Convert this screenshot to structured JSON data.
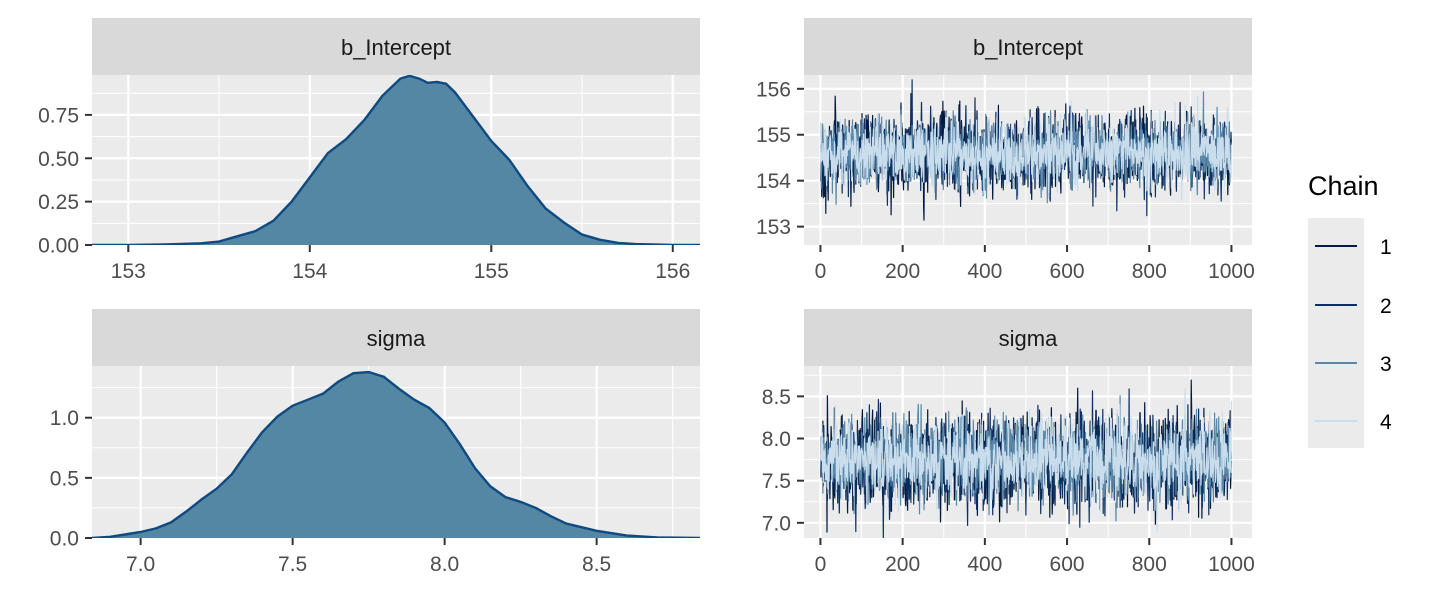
{
  "colors": {
    "panel_bg": "#EBEBEB",
    "strip_bg": "#D9D9D9",
    "grid": "#FFFFFF",
    "density_fill": "#5487A4",
    "density_line": "#0F4A80",
    "chain_1": "#03193F",
    "chain_2": "#0E3161",
    "chain_3": "#5A89AA",
    "chain_4": "#C9DDEC"
  },
  "legend": {
    "title": "Chain",
    "items": [
      {
        "label": "1",
        "color": "#03193F"
      },
      {
        "label": "2",
        "color": "#0E3161"
      },
      {
        "label": "3",
        "color": "#5A89AA"
      },
      {
        "label": "4",
        "color": "#C9DDEC"
      }
    ]
  },
  "chart_data": [
    {
      "type": "area",
      "kind": "density",
      "title": "b_Intercept",
      "xlim": [
        152.8,
        156.15
      ],
      "ylim": [
        0,
        0.98
      ],
      "xticks": [
        153,
        154,
        155,
        156
      ],
      "xtick_labels": [
        "153",
        "154",
        "155",
        "156"
      ],
      "yticks": [
        0,
        0.25,
        0.5,
        0.75
      ],
      "ytick_labels": [
        "0.00",
        "0.25",
        "0.50",
        "0.75"
      ],
      "x": [
        152.8,
        153.0,
        153.2,
        153.4,
        153.5,
        153.6,
        153.7,
        153.8,
        153.9,
        154.0,
        154.1,
        154.2,
        154.3,
        154.4,
        154.5,
        154.55,
        154.6,
        154.65,
        154.7,
        154.75,
        154.8,
        154.9,
        155.0,
        155.1,
        155.2,
        155.3,
        155.4,
        155.5,
        155.6,
        155.7,
        155.8,
        156.0,
        156.15
      ],
      "y": [
        0.0,
        0.0,
        0.003,
        0.01,
        0.02,
        0.05,
        0.08,
        0.14,
        0.25,
        0.39,
        0.53,
        0.61,
        0.72,
        0.86,
        0.96,
        0.975,
        0.96,
        0.935,
        0.94,
        0.93,
        0.88,
        0.74,
        0.6,
        0.49,
        0.34,
        0.21,
        0.13,
        0.06,
        0.03,
        0.012,
        0.005,
        0.0,
        0.0
      ]
    },
    {
      "type": "line",
      "kind": "trace",
      "title": "b_Intercept",
      "xlim": [
        -40,
        1050
      ],
      "ylim": [
        152.6,
        156.3
      ],
      "xticks": [
        0,
        200,
        400,
        600,
        800,
        1000
      ],
      "xtick_labels": [
        "0",
        "200",
        "400",
        "600",
        "800",
        "1000"
      ],
      "yticks": [
        153,
        154,
        155,
        156
      ],
      "ytick_labels": [
        "153",
        "154",
        "155",
        "156"
      ],
      "iterations": 1000,
      "series": [
        {
          "name": "1",
          "color": "#03193F",
          "center": 154.62,
          "spread": 0.42
        },
        {
          "name": "2",
          "color": "#0E3161",
          "center": 154.6,
          "spread": 0.42
        },
        {
          "name": "3",
          "color": "#5A89AA",
          "center": 154.62,
          "spread": 0.38
        },
        {
          "name": "4",
          "color": "#C9DDEC",
          "center": 154.6,
          "spread": 0.36
        }
      ]
    },
    {
      "type": "area",
      "kind": "density",
      "title": "sigma",
      "xlim": [
        6.84,
        8.84
      ],
      "ylim": [
        0,
        1.43
      ],
      "xticks": [
        7.0,
        7.5,
        8.0,
        8.5
      ],
      "xtick_labels": [
        "7.0",
        "7.5",
        "8.0",
        "8.5"
      ],
      "yticks": [
        0,
        0.5,
        1.0
      ],
      "ytick_labels": [
        "0.0",
        "0.5",
        "1.0"
      ],
      "x": [
        6.84,
        6.9,
        7.0,
        7.05,
        7.1,
        7.15,
        7.2,
        7.25,
        7.3,
        7.35,
        7.4,
        7.45,
        7.5,
        7.55,
        7.6,
        7.65,
        7.7,
        7.75,
        7.8,
        7.85,
        7.9,
        7.95,
        8.0,
        8.05,
        8.1,
        8.15,
        8.2,
        8.25,
        8.3,
        8.35,
        8.4,
        8.5,
        8.6,
        8.7,
        8.84
      ],
      "y": [
        0.0,
        0.01,
        0.05,
        0.08,
        0.13,
        0.22,
        0.32,
        0.41,
        0.53,
        0.71,
        0.88,
        1.01,
        1.1,
        1.15,
        1.2,
        1.3,
        1.37,
        1.38,
        1.34,
        1.24,
        1.15,
        1.08,
        0.96,
        0.78,
        0.58,
        0.43,
        0.34,
        0.3,
        0.25,
        0.18,
        0.12,
        0.06,
        0.02,
        0.005,
        0.0
      ]
    },
    {
      "type": "line",
      "kind": "trace",
      "title": "sigma",
      "xlim": [
        -40,
        1050
      ],
      "ylim": [
        6.82,
        8.86
      ],
      "xticks": [
        0,
        200,
        400,
        600,
        800,
        1000
      ],
      "xtick_labels": [
        "0",
        "200",
        "400",
        "600",
        "800",
        "1000"
      ],
      "yticks": [
        7.0,
        7.5,
        8.0,
        8.5
      ],
      "ytick_labels": [
        "7.0",
        "7.5",
        "8.0",
        "8.5"
      ],
      "iterations": 1000,
      "series": [
        {
          "name": "1",
          "color": "#03193F",
          "center": 7.75,
          "spread": 0.28
        },
        {
          "name": "2",
          "color": "#0E3161",
          "center": 7.74,
          "spread": 0.28
        },
        {
          "name": "3",
          "color": "#5A89AA",
          "center": 7.75,
          "spread": 0.25
        },
        {
          "name": "4",
          "color": "#C9DDEC",
          "center": 7.75,
          "spread": 0.22
        }
      ]
    }
  ]
}
